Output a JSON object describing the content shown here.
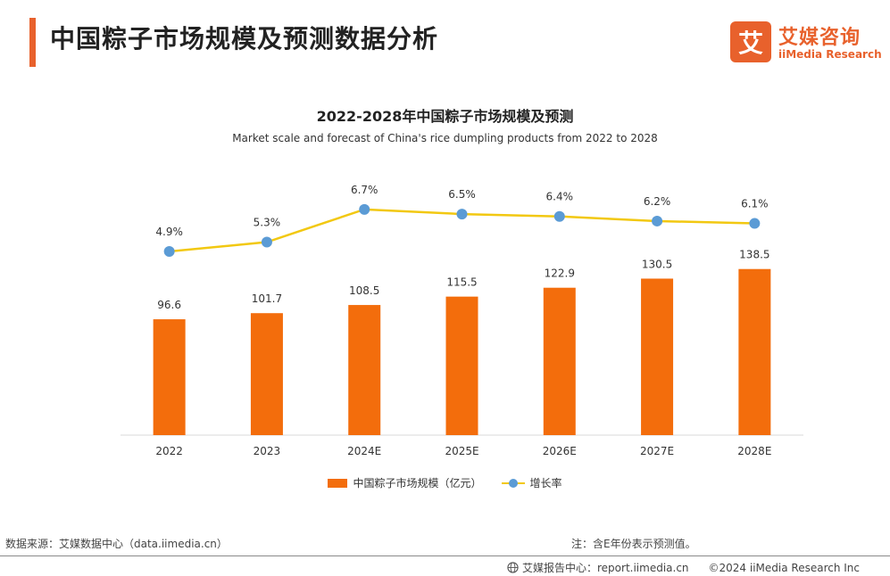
{
  "header": {
    "title": "中国粽子市场规模及预测数据分析",
    "logo_cn": "艾媒咨询",
    "logo_en": "iiMedia Research",
    "logo_mark": "艾"
  },
  "colors": {
    "accent": "#e8612c",
    "bar": "#f36d0c",
    "line": "#f2c811",
    "marker": "#5b9bd5"
  },
  "chart_data": {
    "type": "bar",
    "title": "2022-2028年中国粽子市场规模及预测",
    "subtitle": "Market scale and forecast of China's rice dumpling products from 2022 to 2028",
    "categories": [
      "2022",
      "2023",
      "2024E",
      "2025E",
      "2026E",
      "2027E",
      "2028E"
    ],
    "series": [
      {
        "name": "中国粽子市场规模（亿元）",
        "type": "bar",
        "values": [
          96.6,
          101.7,
          108.5,
          115.5,
          122.9,
          130.5,
          138.5
        ],
        "labels": [
          "96.6",
          "101.7",
          "108.5",
          "115.5",
          "122.9",
          "130.5",
          "138.5"
        ]
      },
      {
        "name": "增长率",
        "type": "line",
        "values": [
          4.9,
          5.3,
          6.7,
          6.5,
          6.4,
          6.2,
          6.1
        ],
        "labels": [
          "4.9%",
          "5.3%",
          "6.7%",
          "6.5%",
          "6.4%",
          "6.2%",
          "6.1%"
        ]
      }
    ],
    "xlabel": "",
    "ylabel": "",
    "legend_position": "bottom",
    "grid": false
  },
  "footer": {
    "source": "数据来源：艾媒数据中心（data.iimedia.cn）",
    "note": "注：含E年份表示预测值。",
    "report": "艾媒报告中心：report.iimedia.cn",
    "copyright": "©2024 iiMedia Research Inc"
  }
}
